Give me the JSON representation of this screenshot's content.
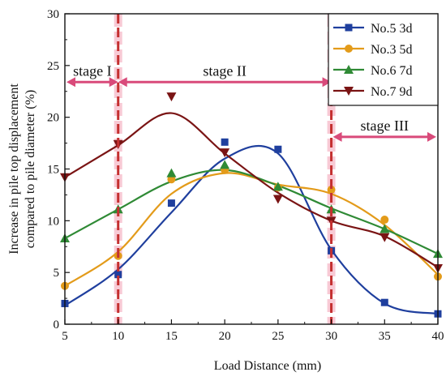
{
  "chart_data": {
    "type": "line",
    "title": "",
    "xlabel": "Load Distance (mm)",
    "ylabel": "Increase in pile top displacement compared to pile diameter (%)",
    "ylabel_lines": [
      "Increase in pile top displacement",
      "compared to pile diameter (%)"
    ],
    "xlim": [
      5,
      40
    ],
    "ylim": [
      0,
      30
    ],
    "xticks": [
      5,
      10,
      15,
      20,
      25,
      30,
      35,
      40
    ],
    "yticks": [
      0,
      5,
      10,
      15,
      20,
      25,
      30
    ],
    "grid": false,
    "legend_position": "top-right",
    "series": [
      {
        "name": "No.5 3d",
        "color": "#1f3f9e",
        "marker": "square",
        "x": [
          5,
          10,
          15,
          20,
          25,
          30,
          35,
          40
        ],
        "y": [
          2.0,
          4.8,
          11.7,
          17.6,
          16.9,
          7.1,
          2.1,
          1.0
        ],
        "fit_y": [
          1.8,
          5.3,
          10.8,
          16.0,
          16.5,
          7.2,
          2.0,
          1.0
        ]
      },
      {
        "name": "No.3 5d",
        "color": "#e39b1a",
        "marker": "circle",
        "x": [
          5,
          10,
          15,
          20,
          25,
          30,
          35,
          40
        ],
        "y": [
          3.7,
          6.6,
          14.0,
          14.9,
          13.2,
          13.0,
          10.1,
          4.6
        ],
        "fit_y": [
          3.7,
          7.0,
          12.6,
          14.6,
          13.5,
          12.6,
          9.6,
          4.8
        ]
      },
      {
        "name": "No.6 7d",
        "color": "#2f8a35",
        "marker": "triangle",
        "x": [
          5,
          10,
          15,
          20,
          25,
          30,
          35,
          40
        ],
        "y": [
          8.3,
          11.1,
          14.6,
          15.4,
          13.3,
          11.1,
          9.2,
          6.8
        ],
        "fit_y": [
          8.3,
          11.1,
          13.8,
          14.9,
          13.4,
          11.2,
          9.2,
          6.8
        ]
      },
      {
        "name": "No.7 9d",
        "color": "#7a1414",
        "marker": "triangle-down",
        "x": [
          5,
          10,
          15,
          20,
          25,
          30,
          35,
          40
        ],
        "y": [
          14.2,
          17.4,
          22.0,
          16.6,
          12.1,
          10.0,
          8.4,
          5.4
        ],
        "fit_y": [
          14.2,
          17.3,
          20.4,
          16.5,
          12.7,
          10.0,
          8.5,
          5.5
        ]
      }
    ],
    "vlines": [
      10,
      30
    ],
    "annotations": [
      {
        "label": "stage I",
        "x_from": 5,
        "x_to": 10,
        "y": 23.4
      },
      {
        "label": "stage II",
        "x_from": 10,
        "x_to": 30,
        "y": 23.4
      },
      {
        "label": "stage III",
        "x_from": 30,
        "x_to": 40,
        "y": 18.1
      }
    ],
    "colors": {
      "stage": "#d94a7a",
      "vline": "#c43030",
      "vline_glow": "#f6b9c8"
    }
  }
}
